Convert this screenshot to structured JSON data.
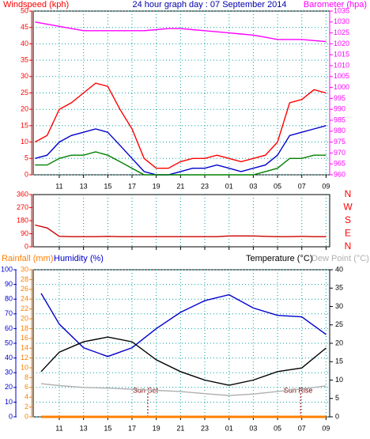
{
  "chart_data": [
    {
      "type": "line",
      "title": "24 hour graph day : 07 September 2014",
      "ylabel": "Windspeed (kph)",
      "y2label": "Barometer (hpa)",
      "x": [
        9,
        10,
        11,
        12,
        13,
        14,
        15,
        16,
        17,
        18,
        19,
        20,
        21,
        22,
        23,
        24,
        25,
        26,
        27,
        28,
        29,
        30,
        31,
        32,
        33
      ],
      "xlim": [
        8.85,
        33.3
      ],
      "xticks": [
        11,
        13,
        15,
        17,
        19,
        21,
        23,
        {
          "value": 25,
          "label": "01"
        },
        {
          "value": 27,
          "label": "03"
        },
        {
          "value": 29,
          "label": "05"
        },
        {
          "value": 31,
          "label": "07"
        },
        {
          "value": 33,
          "label": "09"
        }
      ],
      "ylim": [
        0,
        50
      ],
      "yticks": [
        0,
        5,
        10,
        15,
        20,
        25,
        30,
        35,
        40,
        45,
        50
      ],
      "y2lim": [
        960,
        1035
      ],
      "y2ticks": [
        960,
        965,
        970,
        975,
        980,
        985,
        990,
        995,
        1000,
        1005,
        1010,
        1015,
        1020,
        1025,
        1030,
        1035
      ],
      "grid": true,
      "series": [
        {
          "color": "#ff0000",
          "values": [
            10,
            12,
            20,
            22,
            25,
            28,
            27,
            20,
            14,
            5,
            2,
            2,
            4,
            5,
            5,
            6,
            5,
            4,
            5,
            6,
            10,
            22,
            23,
            26,
            25
          ]
        },
        {
          "color": "#0000cc",
          "values": [
            5,
            6,
            10,
            12,
            13,
            14,
            13,
            9,
            5,
            1,
            0,
            0,
            1,
            2,
            2,
            3,
            2,
            1,
            2,
            3,
            6,
            12,
            13,
            14,
            15
          ]
        },
        {
          "color": "#008000",
          "values": [
            3,
            3,
            5,
            6,
            6,
            7,
            6,
            4,
            2,
            0,
            0,
            0,
            0,
            0,
            0,
            0,
            0,
            0,
            0,
            1,
            2,
            5,
            5,
            6,
            6
          ]
        },
        {
          "color": "#ff00ff",
          "axis": "y2",
          "values": [
            1030,
            1029,
            1028,
            1027,
            1026,
            1026,
            1026,
            1026,
            1026,
            1026,
            1026.5,
            1027,
            1027,
            1026.5,
            1026,
            1025.5,
            1025,
            1024.5,
            1024,
            1023,
            1022,
            1022,
            1022,
            1021.5,
            1021
          ]
        }
      ]
    },
    {
      "type": "line",
      "x": [
        9,
        10,
        11,
        12,
        13,
        14,
        15,
        16,
        17,
        18,
        19,
        20,
        21,
        22,
        23,
        24,
        25,
        26,
        27,
        28,
        29,
        30,
        31,
        32,
        33
      ],
      "xlim": [
        8.85,
        33.3
      ],
      "ylim": [
        0,
        360
      ],
      "yticks": [
        0,
        90,
        180,
        270,
        360
      ],
      "y2lim": [
        0,
        360
      ],
      "y2ticks": [
        {
          "value": 360,
          "label": "N"
        },
        {
          "value": 270,
          "label": "W"
        },
        {
          "value": 180,
          "label": "S"
        },
        {
          "value": 90,
          "label": "E"
        },
        {
          "value": 0,
          "label": "N"
        }
      ],
      "series": [
        {
          "color": "#cc0000",
          "values": [
            150,
            130,
            72,
            70,
            70,
            70,
            72,
            70,
            70,
            70,
            70,
            70,
            70,
            70,
            70,
            70,
            75,
            75,
            75,
            72,
            70,
            70,
            72,
            70,
            70
          ]
        }
      ]
    },
    {
      "type": "line",
      "x": [
        9.5,
        11,
        13,
        15,
        17,
        19,
        21,
        23,
        25,
        27,
        29,
        31,
        33
      ],
      "xlim": [
        8.85,
        33.3
      ],
      "xticks": [
        11,
        13,
        15,
        17,
        19,
        21,
        23,
        {
          "value": 25,
          "label": "01"
        },
        {
          "value": 27,
          "label": "03"
        },
        {
          "value": 29,
          "label": "05"
        },
        {
          "value": 31,
          "label": "07"
        },
        {
          "value": 33,
          "label": "09"
        }
      ],
      "ylim": [
        0,
        100
      ],
      "yticks": [
        0,
        10,
        20,
        30,
        40,
        50,
        60,
        70,
        80,
        90,
        100
      ],
      "y2lim": [
        0,
        40
      ],
      "y2ticks": [
        0,
        5,
        10,
        15,
        20,
        25,
        30,
        35,
        40
      ],
      "y3lim": [
        0,
        30
      ],
      "y3ticks": [
        0,
        2,
        4,
        6,
        8,
        10,
        12,
        14,
        16,
        18,
        20,
        22,
        24,
        26,
        28,
        30
      ],
      "grid": true,
      "series": [
        {
          "name": "Rainfall (mm)",
          "color": "#ff8000",
          "axis": "y3",
          "values": [
            0,
            0,
            0,
            0,
            0,
            0,
            0,
            0,
            0,
            0,
            0,
            0,
            0
          ]
        },
        {
          "name": "Humidity (%)",
          "color": "#0000cc",
          "values": [
            84,
            63,
            47,
            41,
            47,
            60,
            71,
            79,
            83,
            74,
            69,
            68,
            56
          ]
        },
        {
          "name": "Temperature (°C)",
          "color": "#000000",
          "axis": "y2",
          "values": [
            12.3,
            17.6,
            20.4,
            21.7,
            20.4,
            15.5,
            12.3,
            10,
            8.6,
            10,
            12.3,
            13.3,
            18.7
          ]
        },
        {
          "name": "Dew Point (°C)",
          "color": "#b0b0b0",
          "axis": "y2",
          "values": [
            9,
            8.5,
            8,
            7.8,
            7.5,
            7.2,
            6.9,
            6.3,
            5.8,
            6.2,
            6.9,
            7.6,
            8.4
          ]
        }
      ],
      "annotations": [
        {
          "text": "Sun Set",
          "x": 18.3
        },
        {
          "text": "Sun Rise",
          "x": 30.9
        }
      ]
    }
  ]
}
